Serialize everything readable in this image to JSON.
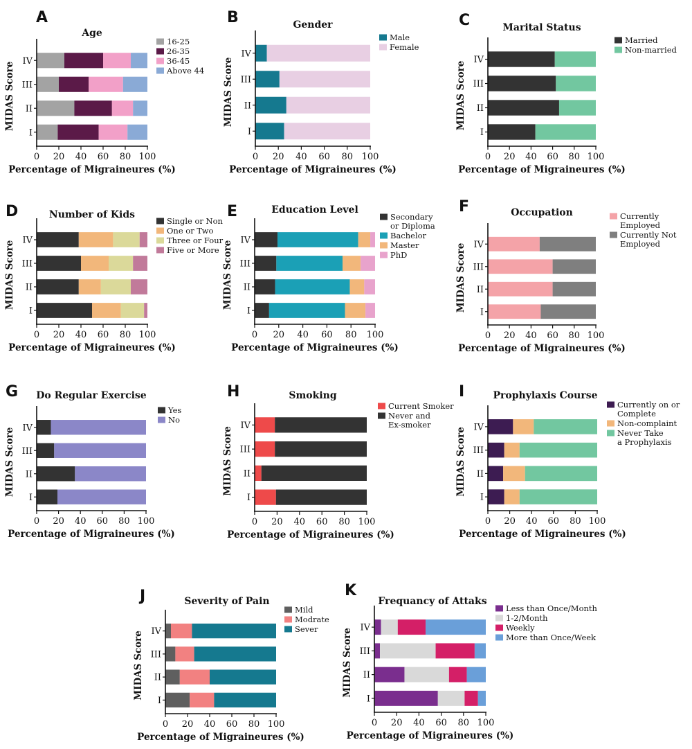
{
  "chart_data": [
    {
      "type": "bar",
      "orientation": "horizontal",
      "stacked": true,
      "letter": "A",
      "title": "Age",
      "xlabel": "Percentage of Migraineures (%)",
      "ylabel": "MIDAS Score",
      "xlim": [
        0,
        100
      ],
      "xticks": [
        "0",
        "20",
        "40",
        "60",
        "80",
        "100"
      ],
      "categories": [
        "I",
        "II",
        "III",
        "IV"
      ],
      "legend": {
        "position": "top-right"
      },
      "series": [
        {
          "name": "16-25",
          "color": "#a3a3a3",
          "values": [
            19,
            34,
            20,
            25
          ]
        },
        {
          "name": "26-35",
          "color": "#5b1a48",
          "values": [
            37,
            34,
            27,
            35
          ]
        },
        {
          "name": "36-45",
          "color": "#f2a0c8",
          "values": [
            26,
            19,
            31,
            25
          ]
        },
        {
          "name": "Above 44",
          "color": "#8aaad6",
          "values": [
            18,
            13,
            22,
            15
          ]
        }
      ]
    },
    {
      "type": "bar",
      "orientation": "horizontal",
      "stacked": true,
      "letter": "B",
      "title": "Gender",
      "xlabel": "Percentage of Migraineures (%)",
      "ylabel": "MIDAS Score",
      "xlim": [
        0,
        100
      ],
      "xticks": [
        "0",
        "20",
        "40",
        "60",
        "80",
        "100"
      ],
      "categories": [
        "I",
        "II",
        "III",
        "IV"
      ],
      "legend": {
        "position": "top-right"
      },
      "series": [
        {
          "name": "Male",
          "color": "#15798f",
          "values": [
            25,
            27,
            21,
            10
          ]
        },
        {
          "name": "Female",
          "color": "#e8cfe3",
          "values": [
            75,
            73,
            79,
            90
          ]
        }
      ]
    },
    {
      "type": "bar",
      "orientation": "horizontal",
      "stacked": true,
      "letter": "C",
      "title": "Marital Status",
      "xlabel": "Percentage of Migraineures (%)",
      "ylabel": "MIDAS Score",
      "xlim": [
        0,
        100
      ],
      "xticks": [
        "0",
        "20",
        "40",
        "60",
        "80",
        "100"
      ],
      "categories": [
        "I",
        "II",
        "III",
        "IV"
      ],
      "legend": {
        "position": "top-right"
      },
      "series": [
        {
          "name": "Married",
          "color": "#333333",
          "values": [
            44,
            66,
            63,
            62
          ]
        },
        {
          "name": "Non-married",
          "color": "#72c7a0",
          "values": [
            56,
            34,
            37,
            38
          ]
        }
      ]
    },
    {
      "type": "bar",
      "orientation": "horizontal",
      "stacked": true,
      "letter": "D",
      "title": "Number of Kids",
      "xlabel": "Percentage of Migraineures (%)",
      "ylabel": "MIDAS Score",
      "xlim": [
        0,
        100
      ],
      "xticks": [
        "0",
        "20",
        "40",
        "60",
        "80",
        "100"
      ],
      "categories": [
        "I",
        "II",
        "III",
        "IV"
      ],
      "legend": {
        "position": "top-right"
      },
      "series": [
        {
          "name": "Single or Non",
          "color": "#333333",
          "values": [
            50,
            38,
            40,
            38
          ]
        },
        {
          "name": "One or Two",
          "color": "#f2b77b",
          "values": [
            26,
            20,
            25,
            31
          ]
        },
        {
          "name": "Three or Four",
          "color": "#dbd99a",
          "values": [
            21,
            27,
            22,
            24
          ]
        },
        {
          "name": "Five or More",
          "color": "#c17a9a",
          "values": [
            3,
            15,
            13,
            7
          ]
        }
      ]
    },
    {
      "type": "bar",
      "orientation": "horizontal",
      "stacked": true,
      "letter": "E",
      "title": "Education  Level",
      "xlabel": "Percentage of Migraineures (%)",
      "ylabel": "MIDAS Score",
      "xlim": [
        0,
        100
      ],
      "xticks": [
        "0",
        "20",
        "40",
        "60",
        "80",
        "100"
      ],
      "categories": [
        "I",
        "II",
        "III",
        "IV"
      ],
      "legend": {
        "position": "top-right"
      },
      "series": [
        {
          "name": "Secondary or Diploma",
          "color": "#333333",
          "values": [
            12,
            17,
            18,
            19
          ]
        },
        {
          "name": "Bachelor",
          "color": "#1ba0b6",
          "values": [
            63,
            62,
            55,
            67
          ]
        },
        {
          "name": "Master",
          "color": "#f2b77b",
          "values": [
            17,
            12,
            15,
            10
          ]
        },
        {
          "name": "PhD",
          "color": "#e8a3cc",
          "values": [
            8,
            9,
            12,
            4
          ]
        }
      ]
    },
    {
      "type": "bar",
      "orientation": "horizontal",
      "stacked": true,
      "letter": "F",
      "title": "Occupation",
      "xlabel": "Percentage of Migraineures (%)",
      "ylabel": "MIDAS Score",
      "xlim": [
        0,
        100
      ],
      "xticks": [
        "0",
        "20",
        "40",
        "60",
        "80",
        "100"
      ],
      "categories": [
        "I",
        "II",
        "III",
        "IV"
      ],
      "legend": {
        "position": "top-right"
      },
      "series": [
        {
          "name": "Currently Employed",
          "color": "#f4a3a8",
          "values": [
            49,
            60,
            60,
            48
          ]
        },
        {
          "name": "Currently Not Employed",
          "color": "#7f7f7f",
          "values": [
            51,
            40,
            40,
            52
          ]
        }
      ]
    },
    {
      "type": "bar",
      "orientation": "horizontal",
      "stacked": true,
      "letter": "G",
      "title": "Do Regular Exercise",
      "xlabel": "Percentage of Migraineures (%)",
      "ylabel": "MIDAS Score",
      "xlim": [
        0,
        100
      ],
      "xticks": [
        "0",
        "20",
        "40",
        "60",
        "80",
        "100"
      ],
      "categories": [
        "I",
        "II",
        "III",
        "IV"
      ],
      "legend": {
        "position": "top-right"
      },
      "series": [
        {
          "name": "Yes",
          "color": "#333333",
          "values": [
            19,
            35,
            16,
            13
          ]
        },
        {
          "name": "No",
          "color": "#8b87c8",
          "values": [
            81,
            65,
            84,
            87
          ]
        }
      ]
    },
    {
      "type": "bar",
      "orientation": "horizontal",
      "stacked": true,
      "letter": "H",
      "title": "Smoking",
      "xlabel": "Percentage of Migraineures (%)",
      "ylabel": "MIDAS Score",
      "xlim": [
        0,
        100
      ],
      "xticks": [
        "0",
        "20",
        "40",
        "60",
        "80",
        "100"
      ],
      "categories": [
        "I",
        "II",
        "III",
        "IV"
      ],
      "legend": {
        "position": "top-right"
      },
      "series": [
        {
          "name": "Current Smoker",
          "color": "#ee4a4a",
          "values": [
            19,
            6,
            18,
            18
          ]
        },
        {
          "name": "Never and Ex-smoker",
          "color": "#333333",
          "values": [
            81,
            94,
            82,
            82
          ]
        }
      ]
    },
    {
      "type": "bar",
      "orientation": "horizontal",
      "stacked": true,
      "letter": "I",
      "title": "Prophylaxis Course",
      "xlabel": "Percentage of Migraineures (%)",
      "ylabel": "MIDAS Score",
      "xlim": [
        0,
        100
      ],
      "xticks": [
        "0",
        "20",
        "40",
        "60",
        "80",
        "100"
      ],
      "categories": [
        "I",
        "II",
        "III",
        "IV"
      ],
      "legend": {
        "position": "top-right"
      },
      "series": [
        {
          "name": "Currently on or Complete",
          "color": "#3d1c52",
          "values": [
            15,
            14,
            15,
            23
          ]
        },
        {
          "name": "Non-complaint",
          "color": "#f2b77b",
          "values": [
            14,
            20,
            14,
            19
          ]
        },
        {
          "name": "Never Take a Prophylaxis",
          "color": "#72c7a0",
          "values": [
            71,
            66,
            71,
            58
          ]
        }
      ]
    },
    {
      "type": "bar",
      "orientation": "horizontal",
      "stacked": true,
      "letter": "J",
      "title": "Severity of Pain",
      "xlabel": "Percentage of Migraineures (%)",
      "ylabel": "MIDAS Score",
      "xlim": [
        0,
        100
      ],
      "xticks": [
        "0",
        "20",
        "40",
        "60",
        "80",
        "100"
      ],
      "categories": [
        "I",
        "II",
        "III",
        "IV"
      ],
      "legend": {
        "position": "top-right"
      },
      "series": [
        {
          "name": "Mild",
          "color": "#5f5f5f",
          "values": [
            22,
            13,
            9,
            5
          ]
        },
        {
          "name": "Modrate",
          "color": "#f28181",
          "values": [
            22,
            27,
            17,
            19
          ]
        },
        {
          "name": "Sever",
          "color": "#15798f",
          "values": [
            56,
            60,
            74,
            76
          ]
        }
      ]
    },
    {
      "type": "bar",
      "orientation": "horizontal",
      "stacked": true,
      "letter": "K",
      "title": "Frequancy of Attaks",
      "xlabel": "Percentage of Migraineures (%)",
      "ylabel": "MIDAS Score",
      "xlim": [
        0,
        100
      ],
      "xticks": [
        "0",
        "20",
        "40",
        "60",
        "80",
        "100"
      ],
      "categories": [
        "I",
        "II",
        "III",
        "IV"
      ],
      "legend": {
        "position": "top-right"
      },
      "series": [
        {
          "name": "Less than Once/Month",
          "color": "#7a2e8e",
          "values": [
            57,
            27,
            5,
            6
          ]
        },
        {
          "name": "1-2/Month",
          "color": "#d9d9d9",
          "values": [
            24,
            40,
            50,
            15
          ]
        },
        {
          "name": "Weekly",
          "color": "#d41f67",
          "values": [
            12,
            16,
            35,
            25
          ]
        },
        {
          "name": "More than Once/Week",
          "color": "#6a9fd9",
          "values": [
            7,
            17,
            10,
            54
          ]
        }
      ]
    }
  ]
}
